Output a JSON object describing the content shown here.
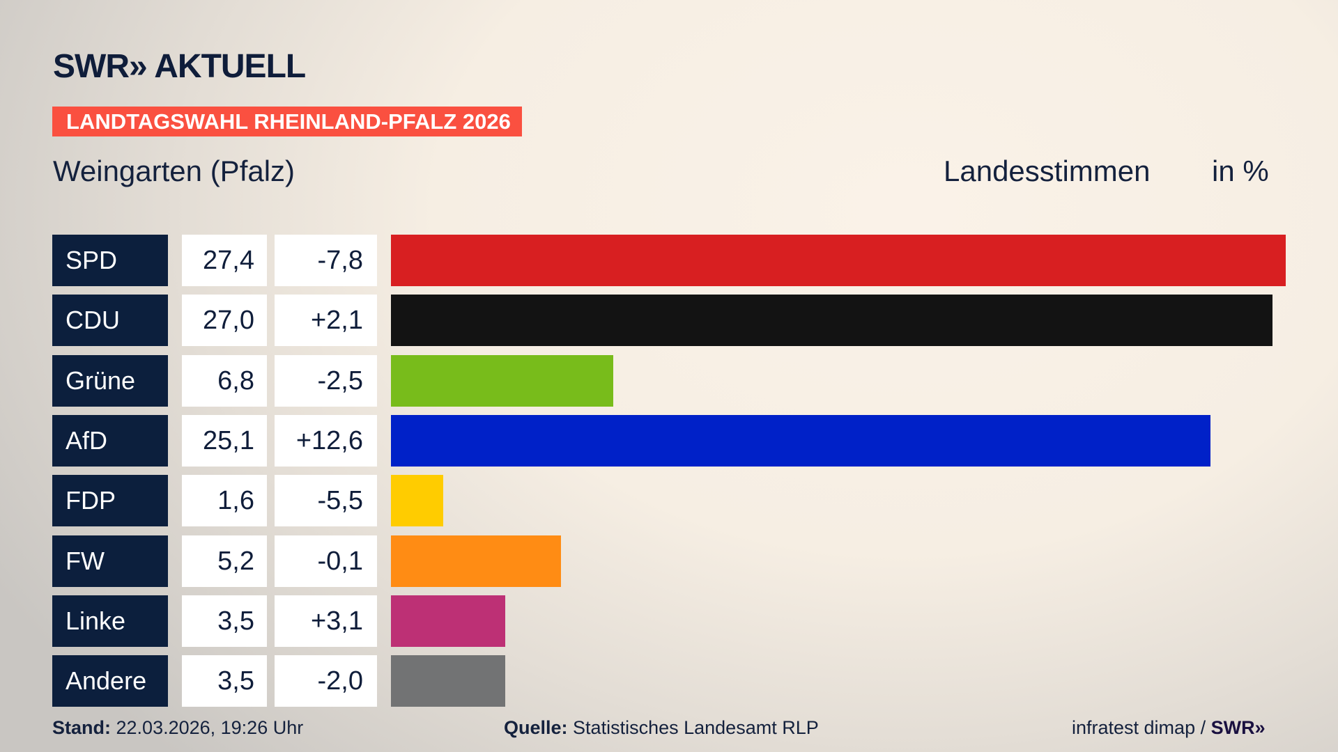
{
  "logo": "SWR» AKTUELL",
  "banner": "LANDTAGSWAHL RHEINLAND-PFALZ 2026",
  "title": "Weingarten (Pfalz)",
  "header": {
    "vote_type": "Landesstimmen",
    "unit": "in %"
  },
  "footer": {
    "stand_label": "Stand:",
    "stand_value": "22.03.2026, 19:26 Uhr",
    "source_label": "Quelle:",
    "source_value": "Statistisches Landesamt RLP",
    "credit": "infratest dimap /",
    "credit_logo": "SWR»"
  },
  "chart_data": {
    "type": "bar",
    "orientation": "horizontal",
    "categories": [
      "SPD",
      "CDU",
      "Grüne",
      "AfD",
      "FDP",
      "FW",
      "Linke",
      "Andere"
    ],
    "values": [
      27.4,
      27.0,
      6.8,
      25.1,
      1.6,
      5.2,
      3.5,
      3.5
    ],
    "value_labels": [
      "27,4",
      "27,0",
      "6,8",
      "25,1",
      "1,6",
      "5,2",
      "3,5",
      "3,5"
    ],
    "diff_labels": [
      "-7,8",
      "+2,1",
      "-2,5",
      "+12,6",
      "-5,5",
      "-0,1",
      "+3,1",
      "-2,0"
    ],
    "diffs": [
      -7.8,
      2.1,
      -2.5,
      12.6,
      -5.5,
      -0.1,
      3.1,
      -2.0
    ],
    "colors": [
      "#d81f21",
      "#131313",
      "#78bc1b",
      "#0021c8",
      "#ffcc00",
      "#ff8c14",
      "#bd3075",
      "#727374"
    ],
    "xlim": [
      0,
      27.4
    ],
    "grid": false
  }
}
